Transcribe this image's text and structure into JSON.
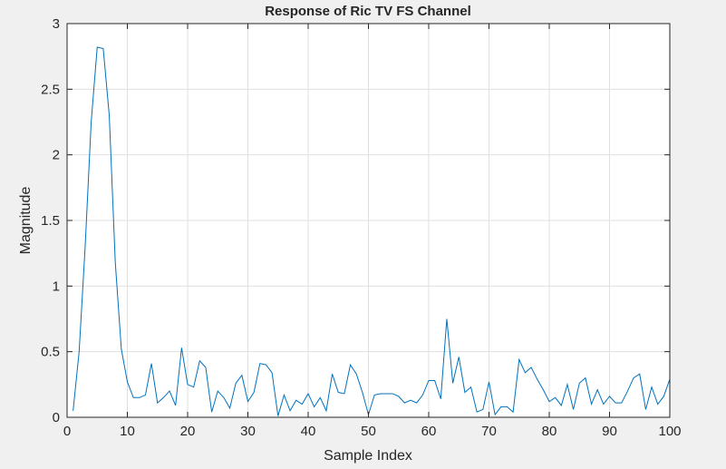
{
  "chart_data": {
    "type": "line",
    "title": "Response of Ric TV FS Channel",
    "xlabel": "Sample Index",
    "ylabel": "Magnitude",
    "xlim": [
      0,
      100
    ],
    "ylim": [
      0,
      3
    ],
    "xticks": [
      0,
      10,
      20,
      30,
      40,
      50,
      60,
      70,
      80,
      90,
      100
    ],
    "yticks": [
      0,
      0.5,
      1,
      1.5,
      2,
      2.5,
      3
    ],
    "xtick_labels": [
      "0",
      "10",
      "20",
      "30",
      "40",
      "50",
      "60",
      "70",
      "80",
      "90",
      "100"
    ],
    "ytick_labels": [
      "0",
      "0.5",
      "1",
      "1.5",
      "2",
      "2.5",
      "3"
    ],
    "grid": true,
    "legend": "none",
    "line_color": "#0072bd",
    "series": [
      {
        "x": [
          1,
          2,
          3,
          4,
          5,
          6,
          7,
          8,
          9,
          10,
          11,
          12,
          13,
          14,
          15,
          16,
          17,
          18,
          19,
          20,
          21,
          22,
          23,
          24,
          25,
          26,
          27,
          28,
          29,
          30,
          31,
          32,
          33,
          34,
          35,
          36,
          37,
          38,
          39,
          40,
          41,
          42,
          43,
          44,
          45,
          46,
          47,
          48,
          49,
          50,
          51,
          52,
          53,
          54,
          55,
          56,
          57,
          58,
          59,
          60,
          61,
          62,
          63,
          64,
          65,
          66,
          67,
          68,
          69,
          70,
          71,
          72,
          73,
          74,
          75,
          76,
          77,
          78,
          79,
          80,
          81,
          82,
          83,
          84,
          85,
          86,
          87,
          88,
          89,
          90,
          91,
          92,
          93,
          94,
          95,
          96,
          97,
          98,
          99,
          100
        ],
        "y": [
          0.05,
          0.5,
          1.3,
          2.25,
          2.82,
          2.81,
          2.3,
          1.18,
          0.52,
          0.27,
          0.15,
          0.15,
          0.17,
          0.41,
          0.11,
          0.15,
          0.2,
          0.09,
          0.53,
          0.25,
          0.23,
          0.43,
          0.38,
          0.04,
          0.2,
          0.15,
          0.07,
          0.26,
          0.32,
          0.12,
          0.19,
          0.41,
          0.4,
          0.34,
          0.01,
          0.17,
          0.05,
          0.13,
          0.1,
          0.18,
          0.08,
          0.15,
          0.05,
          0.33,
          0.19,
          0.18,
          0.4,
          0.33,
          0.19,
          0.02,
          0.17,
          0.18,
          0.18,
          0.18,
          0.16,
          0.11,
          0.13,
          0.11,
          0.17,
          0.28,
          0.28,
          0.14,
          0.75,
          0.26,
          0.46,
          0.19,
          0.23,
          0.04,
          0.06,
          0.27,
          0.02,
          0.08,
          0.08,
          0.04,
          0.44,
          0.34,
          0.38,
          0.29,
          0.21,
          0.12,
          0.15,
          0.09,
          0.25,
          0.06,
          0.26,
          0.3,
          0.1,
          0.21,
          0.1,
          0.16,
          0.11,
          0.11,
          0.2,
          0.3,
          0.33,
          0.06,
          0.23,
          0.1,
          0.16,
          0.29
        ]
      }
    ]
  }
}
